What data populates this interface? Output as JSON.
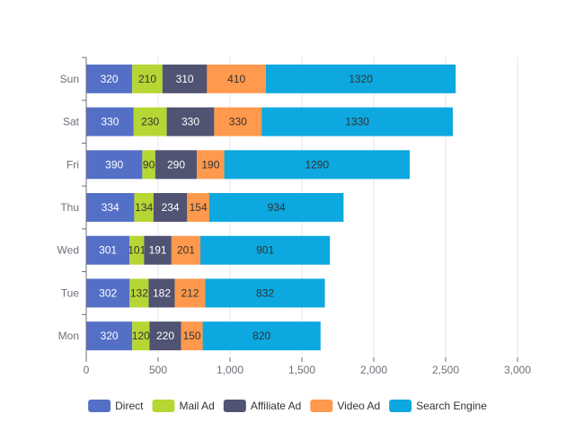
{
  "chart_data": {
    "type": "bar",
    "orientation": "horizontal",
    "stacked": true,
    "categories": [
      "Mon",
      "Tue",
      "Wed",
      "Thu",
      "Fri",
      "Sat",
      "Sun"
    ],
    "series": [
      {
        "name": "Direct",
        "color": "#5470c6",
        "values": [
          320,
          302,
          301,
          334,
          390,
          330,
          320
        ]
      },
      {
        "name": "Mail Ad",
        "color": "#b6d634",
        "values": [
          120,
          132,
          101,
          134,
          90,
          230,
          210
        ]
      },
      {
        "name": "Affiliate Ad",
        "color": "#505372",
        "values": [
          220,
          182,
          191,
          234,
          290,
          330,
          310
        ]
      },
      {
        "name": "Video Ad",
        "color": "#ff994d",
        "values": [
          150,
          212,
          201,
          154,
          190,
          330,
          410
        ]
      },
      {
        "name": "Search Engine",
        "color": "#0ca8df",
        "values": [
          820,
          832,
          901,
          934,
          1290,
          1330,
          1320
        ]
      }
    ],
    "xlim": [
      0,
      3000
    ],
    "x_ticks": [
      0,
      500,
      1000,
      1500,
      2000,
      2500,
      3000
    ],
    "x_tick_labels": [
      "0",
      "500",
      "1,000",
      "1,500",
      "2,000",
      "2,500",
      "3,000"
    ],
    "grid": "vertical",
    "legend_position": "bottom",
    "title": "",
    "xlabel": "",
    "ylabel": ""
  }
}
